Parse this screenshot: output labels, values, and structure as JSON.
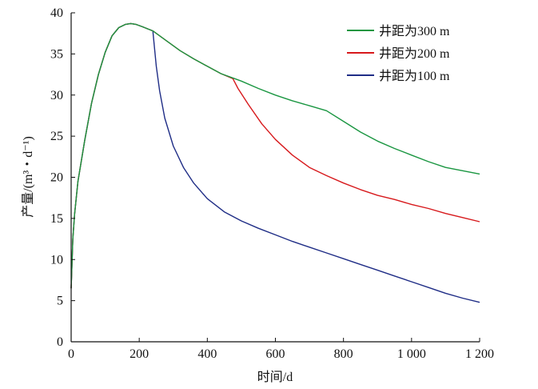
{
  "chart_data": {
    "type": "line",
    "title": "",
    "xlabel": "时间/d",
    "ylabel": "产量/(m³・d⁻¹)",
    "xlim": [
      0,
      1200
    ],
    "ylim": [
      0,
      40
    ],
    "x_ticks": [
      0,
      200,
      400,
      600,
      800,
      1000,
      1200
    ],
    "x_tick_labels": [
      "0",
      "200",
      "400",
      "600",
      "800",
      "1 000",
      "1 200"
    ],
    "y_ticks": [
      0,
      5,
      10,
      15,
      20,
      25,
      30,
      35,
      40
    ],
    "y_tick_labels": [
      "0",
      "5",
      "10",
      "15",
      "20",
      "25",
      "30",
      "35",
      "40"
    ],
    "grid": false,
    "legend_position": "top-right",
    "series": [
      {
        "name": "井距为300 m",
        "color": "#1a9641",
        "points": [
          [
            0,
            6.5
          ],
          [
            5,
            12.5
          ],
          [
            10,
            15.5
          ],
          [
            20,
            19.5
          ],
          [
            40,
            24.5
          ],
          [
            60,
            29
          ],
          [
            80,
            32.5
          ],
          [
            100,
            35.2
          ],
          [
            120,
            37.2
          ],
          [
            140,
            38.2
          ],
          [
            160,
            38.6
          ],
          [
            175,
            38.7
          ],
          [
            190,
            38.6
          ],
          [
            210,
            38.3
          ],
          [
            240,
            37.8
          ],
          [
            280,
            36.6
          ],
          [
            320,
            35.4
          ],
          [
            360,
            34.4
          ],
          [
            400,
            33.5
          ],
          [
            440,
            32.6
          ],
          [
            480,
            32.0
          ],
          [
            500,
            31.7
          ],
          [
            550,
            30.8
          ],
          [
            600,
            30.0
          ],
          [
            650,
            29.3
          ],
          [
            700,
            28.7
          ],
          [
            750,
            28.1
          ],
          [
            800,
            26.8
          ],
          [
            850,
            25.5
          ],
          [
            900,
            24.4
          ],
          [
            950,
            23.5
          ],
          [
            1000,
            22.7
          ],
          [
            1050,
            21.9
          ],
          [
            1100,
            21.2
          ],
          [
            1150,
            20.8
          ],
          [
            1200,
            20.4
          ]
        ]
      },
      {
        "name": "井距为200 m",
        "color": "#d7191c",
        "points": [
          [
            0,
            6.5
          ],
          [
            5,
            12.5
          ],
          [
            10,
            15.5
          ],
          [
            20,
            19.5
          ],
          [
            40,
            24.5
          ],
          [
            60,
            29
          ],
          [
            80,
            32.5
          ],
          [
            100,
            35.2
          ],
          [
            120,
            37.2
          ],
          [
            140,
            38.2
          ],
          [
            160,
            38.6
          ],
          [
            175,
            38.7
          ],
          [
            190,
            38.6
          ],
          [
            210,
            38.3
          ],
          [
            240,
            37.8
          ],
          [
            280,
            36.6
          ],
          [
            320,
            35.4
          ],
          [
            360,
            34.4
          ],
          [
            400,
            33.5
          ],
          [
            440,
            32.6
          ],
          [
            475,
            32.0
          ],
          [
            490,
            30.8
          ],
          [
            520,
            28.9
          ],
          [
            560,
            26.5
          ],
          [
            600,
            24.6
          ],
          [
            650,
            22.7
          ],
          [
            700,
            21.2
          ],
          [
            750,
            20.2
          ],
          [
            800,
            19.3
          ],
          [
            850,
            18.5
          ],
          [
            900,
            17.8
          ],
          [
            950,
            17.3
          ],
          [
            1000,
            16.7
          ],
          [
            1050,
            16.2
          ],
          [
            1100,
            15.6
          ],
          [
            1150,
            15.1
          ],
          [
            1200,
            14.6
          ]
        ]
      },
      {
        "name": "井距为100 m",
        "color": "#1f2d86",
        "points": [
          [
            0,
            6.5
          ],
          [
            5,
            12.5
          ],
          [
            10,
            15.5
          ],
          [
            20,
            19.5
          ],
          [
            40,
            24.5
          ],
          [
            60,
            29
          ],
          [
            80,
            32.5
          ],
          [
            100,
            35.2
          ],
          [
            120,
            37.2
          ],
          [
            140,
            38.2
          ],
          [
            160,
            38.6
          ],
          [
            175,
            38.7
          ],
          [
            190,
            38.6
          ],
          [
            210,
            38.3
          ],
          [
            240,
            37.8
          ],
          [
            250,
            33.5
          ],
          [
            260,
            30.5
          ],
          [
            275,
            27.2
          ],
          [
            300,
            23.8
          ],
          [
            330,
            21.2
          ],
          [
            360,
            19.3
          ],
          [
            400,
            17.4
          ],
          [
            450,
            15.8
          ],
          [
            500,
            14.7
          ],
          [
            550,
            13.8
          ],
          [
            600,
            13.0
          ],
          [
            650,
            12.2
          ],
          [
            700,
            11.5
          ],
          [
            750,
            10.8
          ],
          [
            800,
            10.1
          ],
          [
            850,
            9.4
          ],
          [
            900,
            8.7
          ],
          [
            950,
            8.0
          ],
          [
            1000,
            7.3
          ],
          [
            1050,
            6.6
          ],
          [
            1100,
            5.9
          ],
          [
            1150,
            5.3
          ],
          [
            1200,
            4.8
          ]
        ]
      }
    ]
  }
}
